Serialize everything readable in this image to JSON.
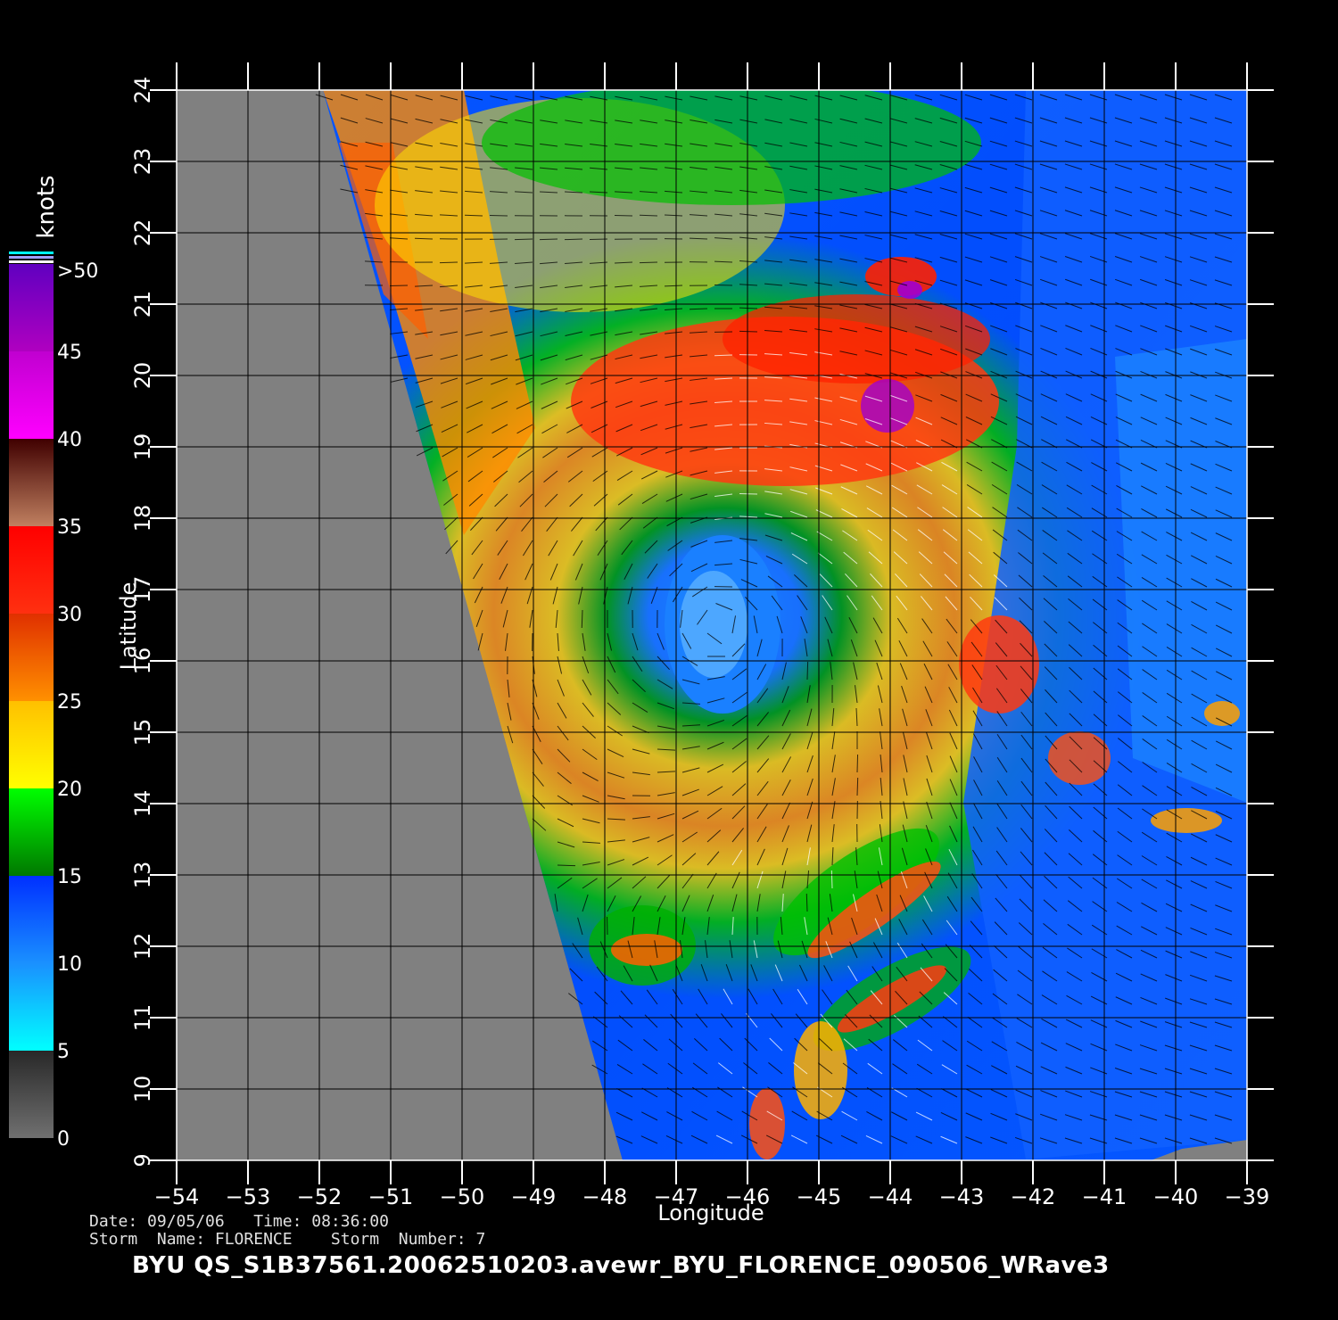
{
  "map": {
    "lon_ticks": [
      -54,
      -53,
      -52,
      -51,
      -50,
      -49,
      -48,
      -47,
      -46,
      -45,
      -44,
      -43,
      -42,
      -41,
      -40,
      -39
    ],
    "lat_ticks": [
      9,
      10,
      11,
      12,
      13,
      14,
      15,
      16,
      17,
      18,
      19,
      20,
      21,
      22,
      23,
      24
    ],
    "lon_range": [
      -54,
      -39
    ],
    "lat_range": [
      9,
      24
    ],
    "xlabel": "Longitude",
    "ylabel": "Latitude",
    "no_data_color": "#808080",
    "eye_center": {
      "lon": -46.4,
      "lat": 16.5
    }
  },
  "colorbar": {
    "unit": "knots",
    "labels": [
      "0",
      "5",
      "10",
      "15",
      "20",
      "25",
      "30",
      "35",
      "40",
      "45",
      ">50"
    ],
    "bands": [
      {
        "from": 0,
        "to": 5,
        "colors": [
          "#707070",
          "#282828"
        ]
      },
      {
        "from": 5,
        "to": 10,
        "colors": [
          "#00ffff",
          "#1a90ff"
        ]
      },
      {
        "from": 10,
        "to": 15,
        "colors": [
          "#1a90ff",
          "#0030ff"
        ]
      },
      {
        "from": 15,
        "to": 20,
        "colors": [
          "#007800",
          "#00ff00"
        ]
      },
      {
        "from": 20,
        "to": 25,
        "colors": [
          "#ffff00",
          "#ffc000"
        ]
      },
      {
        "from": 25,
        "to": 30,
        "colors": [
          "#ff9000",
          "#e03000"
        ]
      },
      {
        "from": 30,
        "to": 35,
        "colors": [
          "#ff3010",
          "#ff0000"
        ]
      },
      {
        "from": 35,
        "to": 40,
        "colors": [
          "#c08060",
          "#400000"
        ]
      },
      {
        "from": 40,
        "to": 45,
        "colors": [
          "#ff00ff",
          "#c000d0"
        ]
      },
      {
        "from": 45,
        "to": 50,
        "colors": [
          "#b000c0",
          "#6000c0"
        ]
      }
    ]
  },
  "info": {
    "line1": "Date: 09/05/06   Time: 08:36:00",
    "line2": "Storm  Name: FLORENCE    Storm  Number: 7",
    "title": "BYU  QS_S1B37561.20062510203.avewr_BYU_FLORENCE_090506_WRave3"
  }
}
